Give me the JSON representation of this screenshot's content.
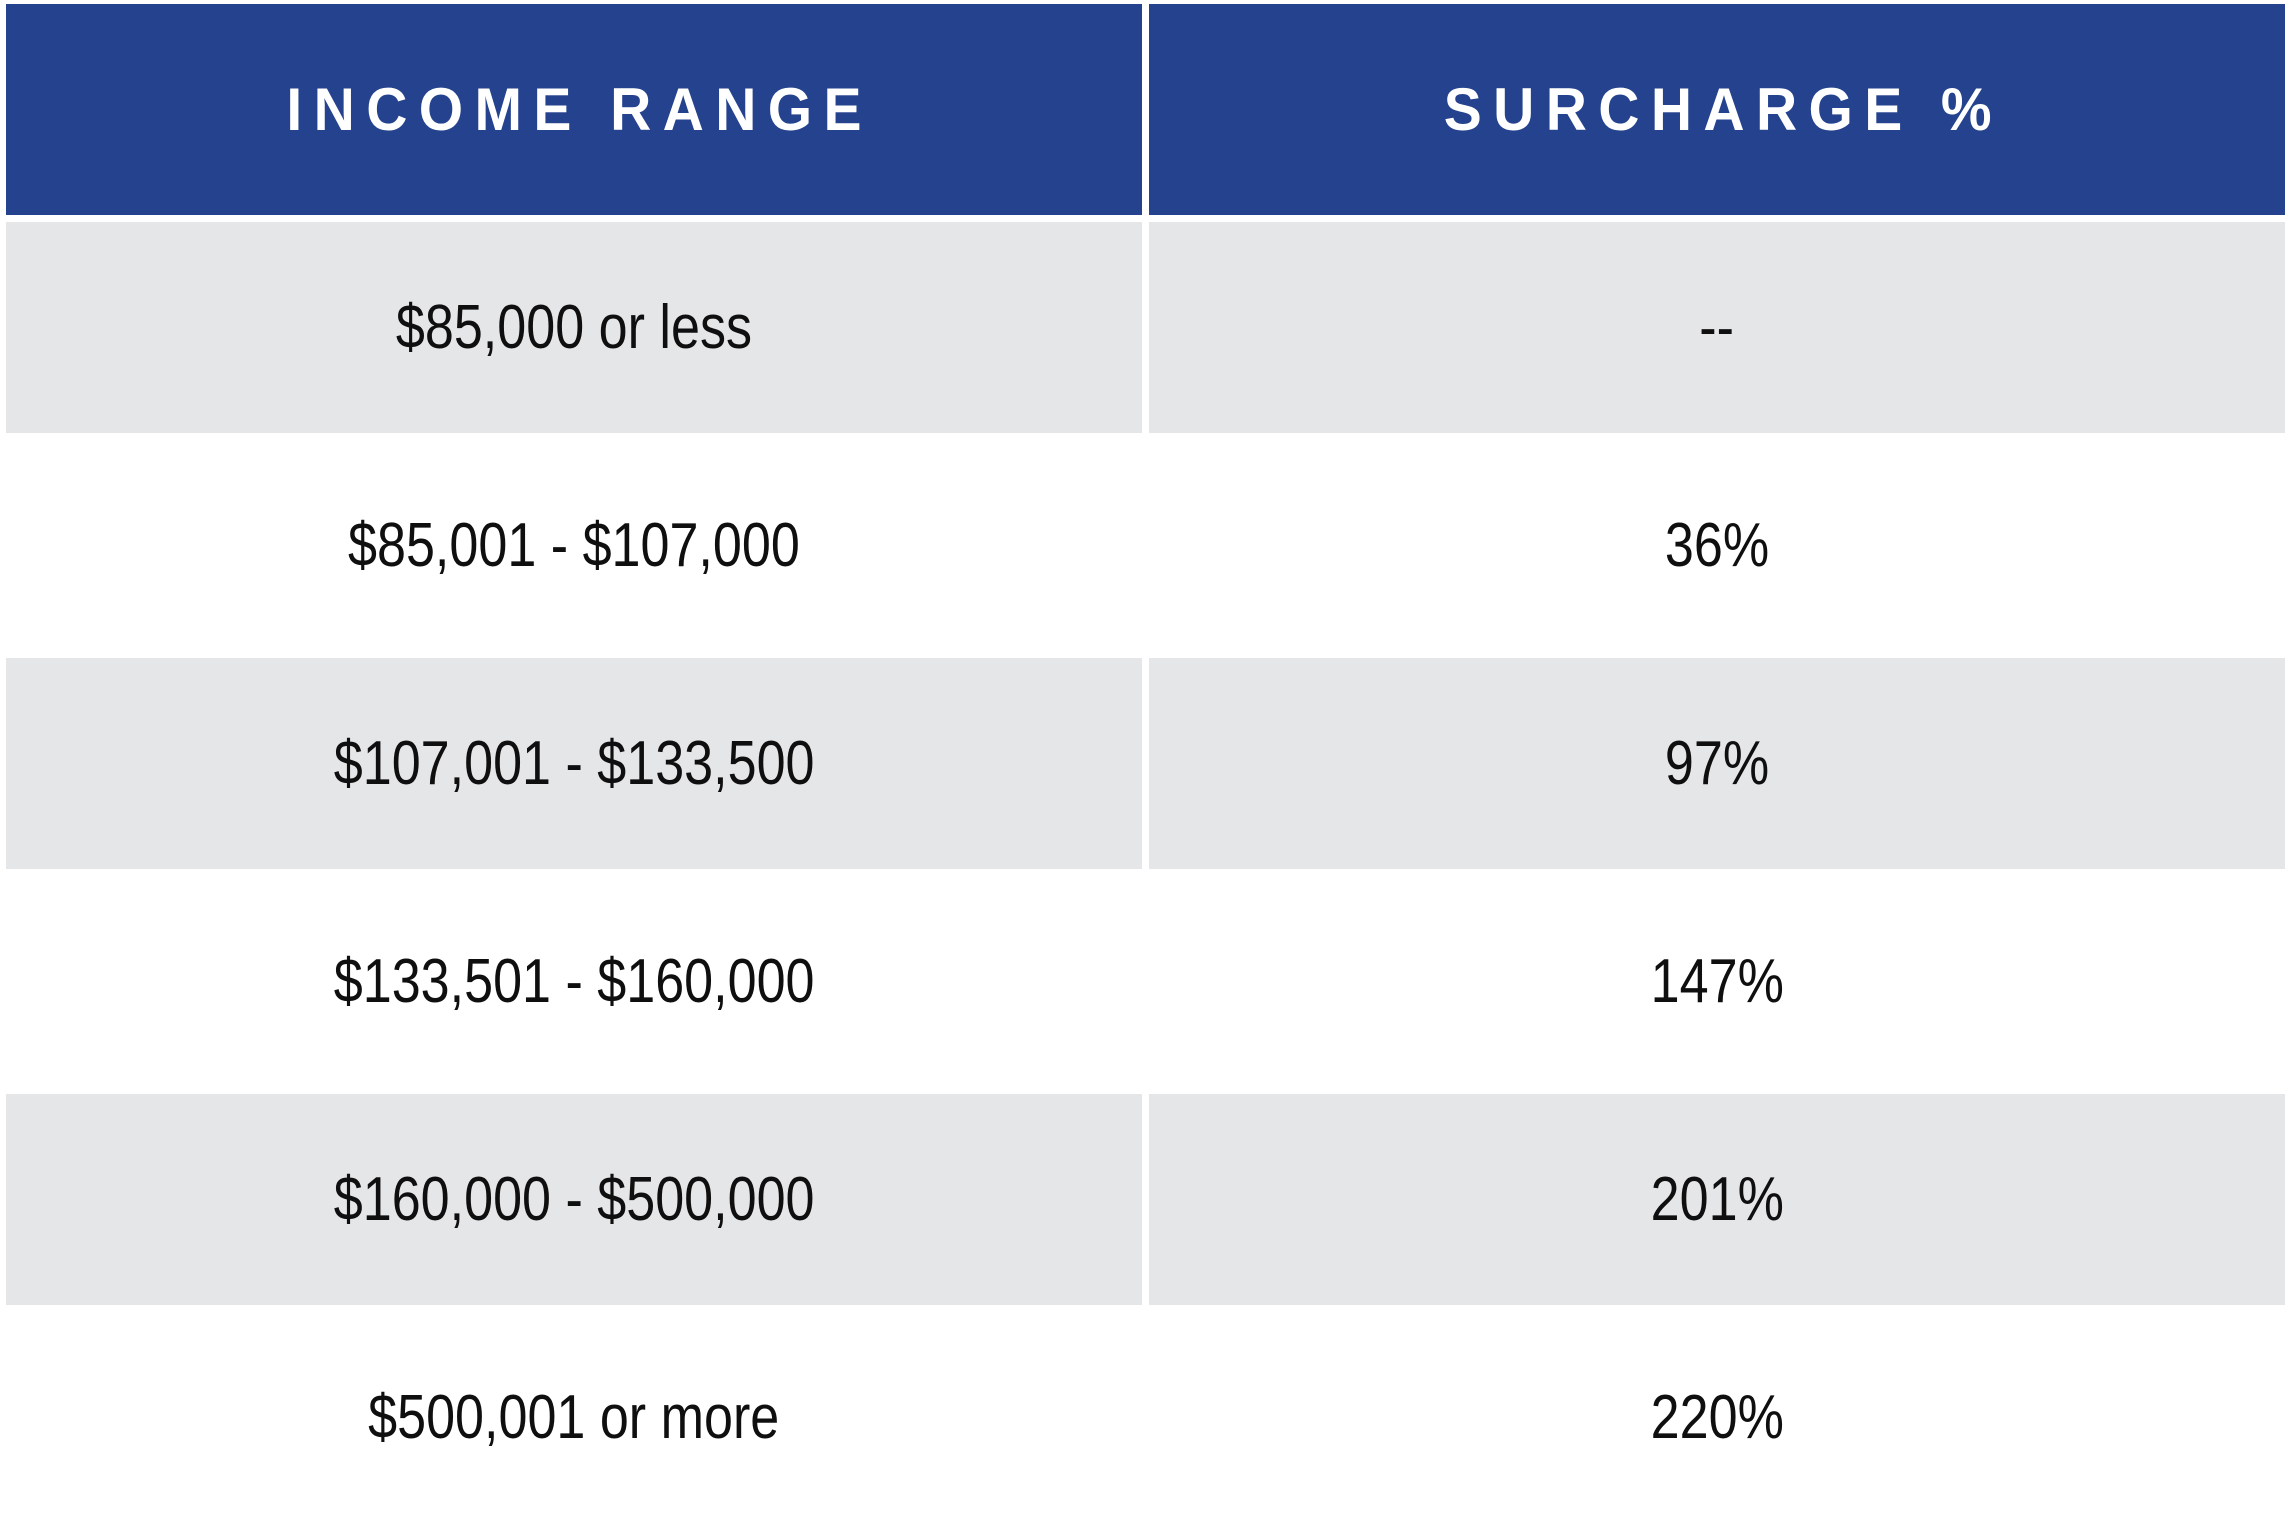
{
  "table": {
    "columns": [
      {
        "label": "INCOME RANGE"
      },
      {
        "label": "SURCHARGE %"
      }
    ],
    "rows": [
      {
        "income_range": "$85,000 or less",
        "surcharge": "--"
      },
      {
        "income_range": "$85,001 - $107,000",
        "surcharge": "36%"
      },
      {
        "income_range": "$107,001 - $133,500",
        "surcharge": "97%"
      },
      {
        "income_range": "$133,501 - $160,000",
        "surcharge": "147%"
      },
      {
        "income_range": "$160,000 - $500,000",
        "surcharge": "201%"
      },
      {
        "income_range": "$500,001 or more",
        "surcharge": "220%"
      }
    ],
    "colors": {
      "header_bg": "#24428D",
      "header_text": "#FFFFFF",
      "row_alt_bg": "#E5E6E8",
      "row_bg": "#FFFFFF",
      "cell_text": "#0F0F0F",
      "gap": "#FFFFFF"
    }
  },
  "chart_data": {
    "type": "table",
    "title": "",
    "columns": [
      "INCOME RANGE",
      "SURCHARGE %"
    ],
    "rows": [
      [
        "$85,000 or less",
        "--"
      ],
      [
        "$85,001 - $107,000",
        "36%"
      ],
      [
        "$107,001 - $133,500",
        "97%"
      ],
      [
        "$133,501 - $160,000",
        "147%"
      ],
      [
        "$160,000 - $500,000",
        "201%"
      ],
      [
        "$500,001 or more",
        "220%"
      ]
    ],
    "surcharge_values_pct": [
      null,
      36,
      97,
      147,
      201,
      220
    ],
    "layout_hints": {
      "header_style": "dark-blue background, white bold uppercase, letter-spaced",
      "body_style": "alternating light-gray / white rows, centered black text",
      "grid": "white 7px gaps between cells, no visible borders"
    }
  }
}
